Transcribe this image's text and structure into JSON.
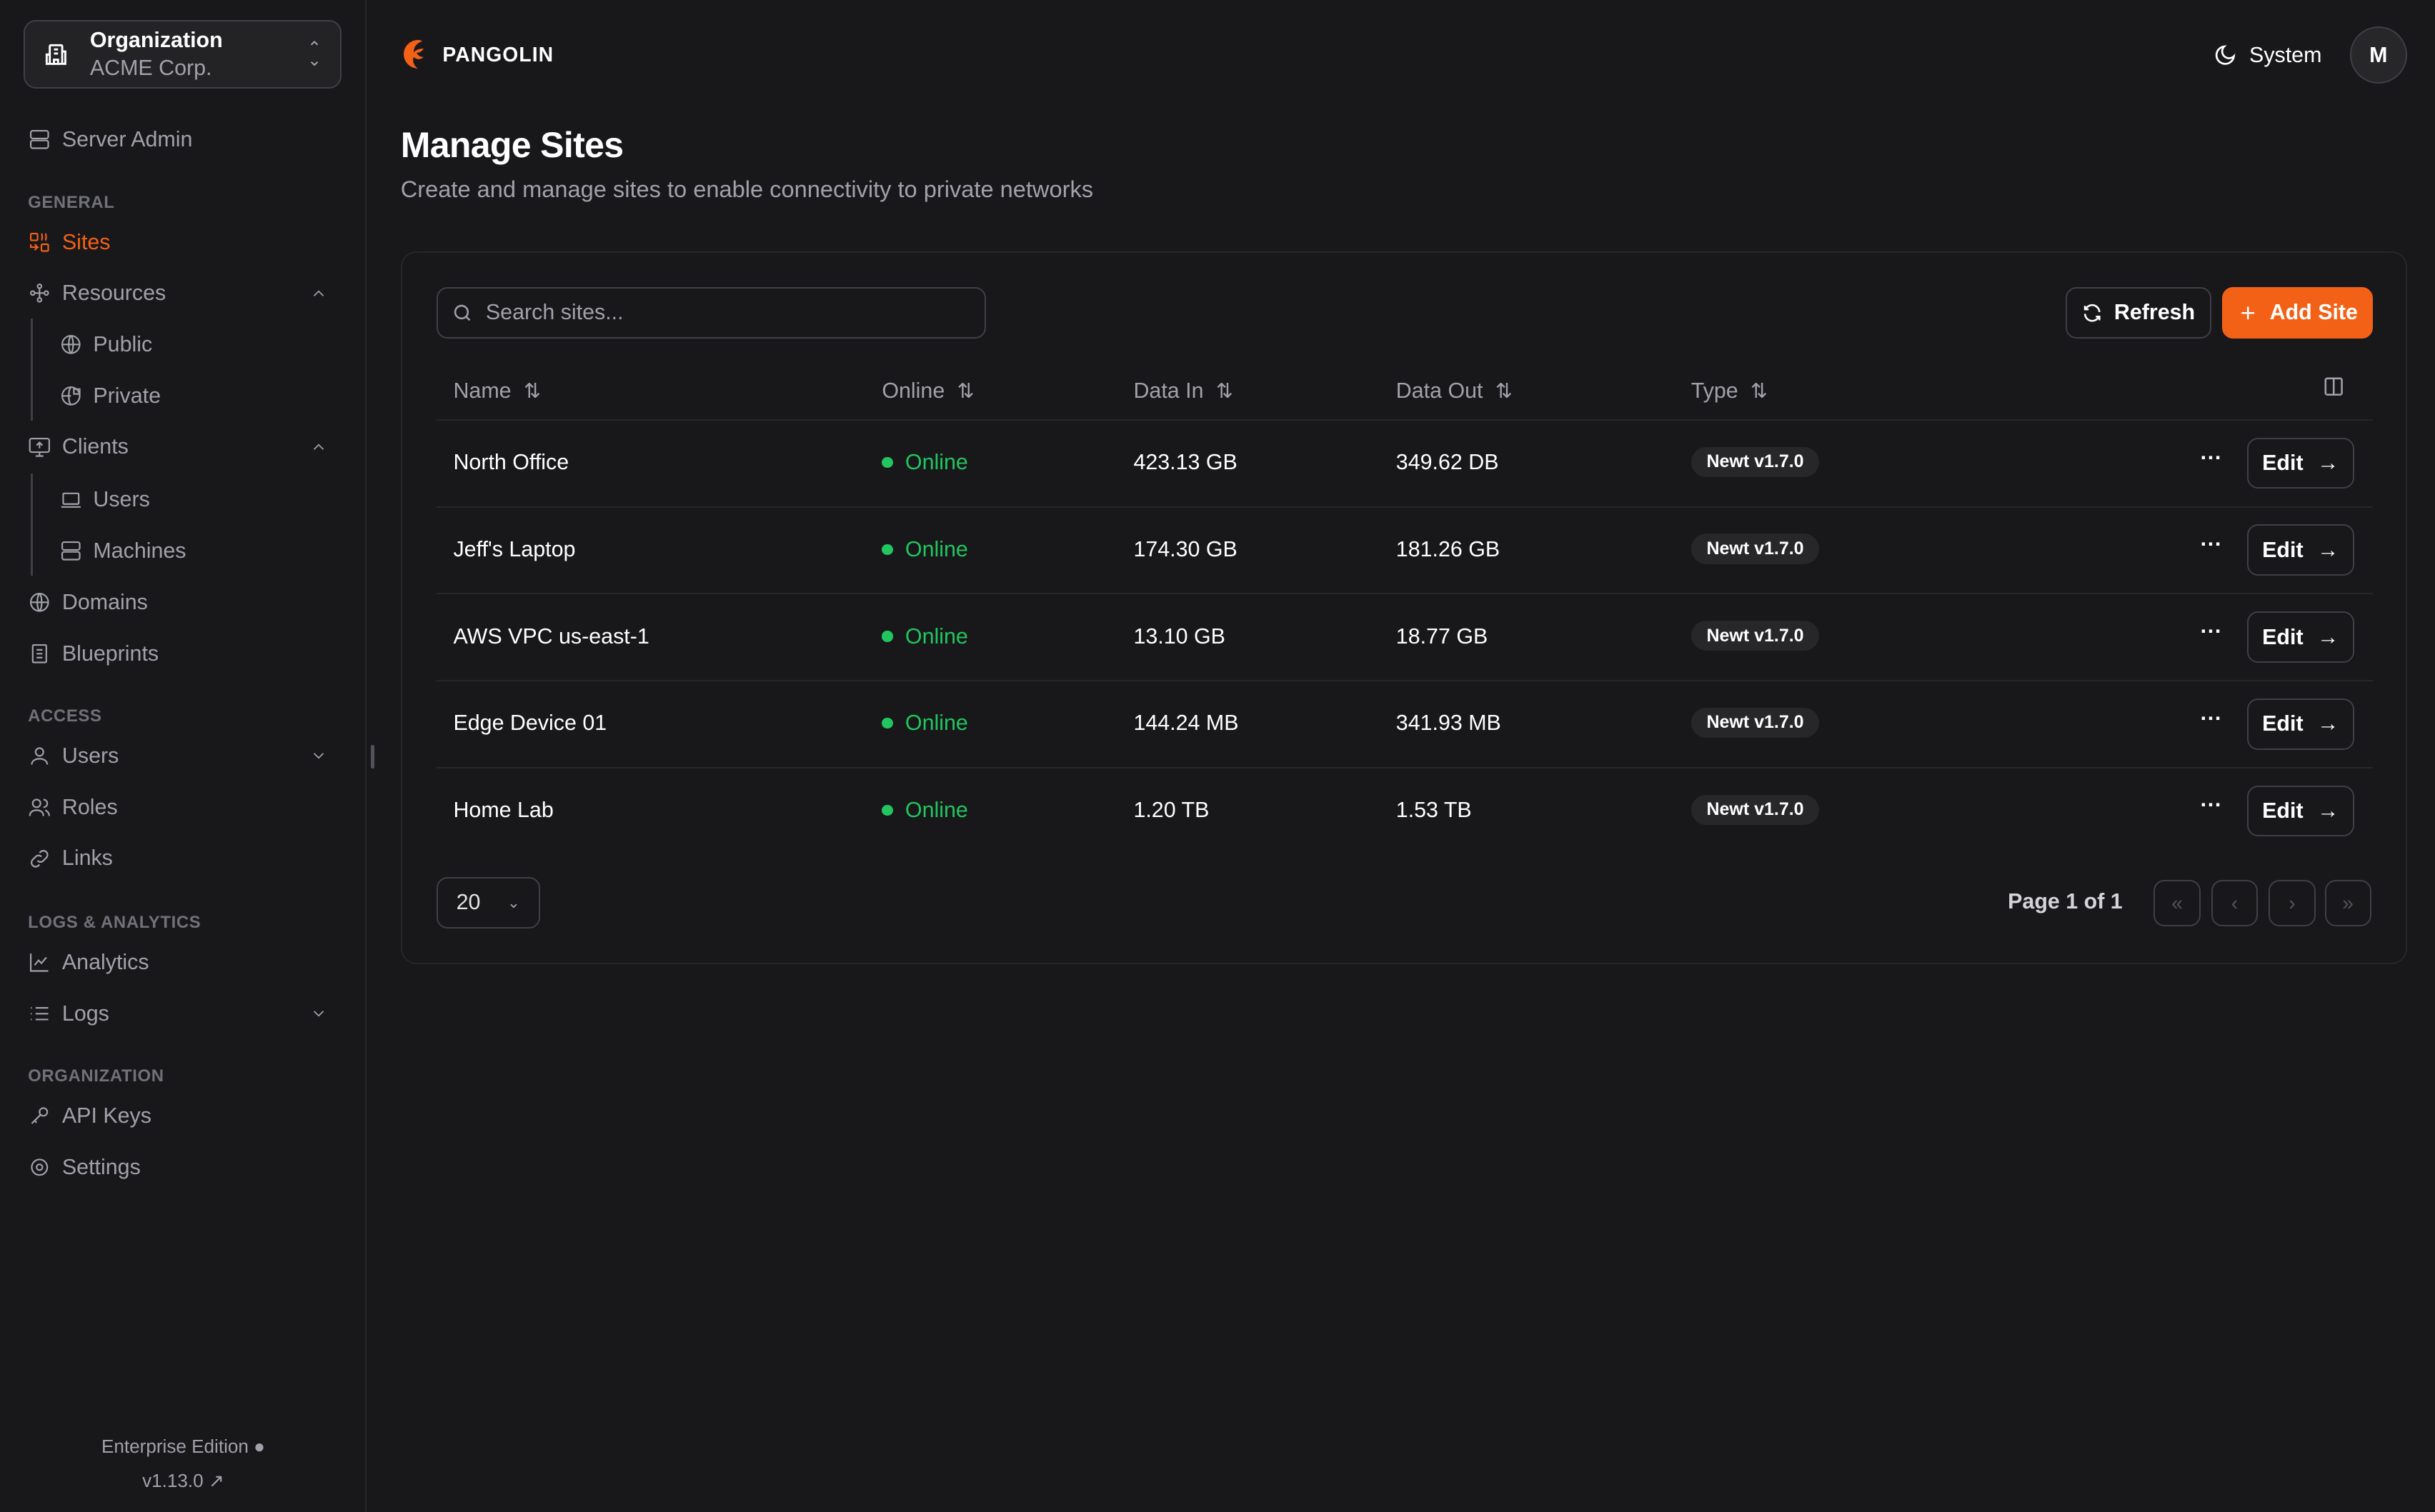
{
  "org": {
    "label": "Organization",
    "name": "ACME Corp."
  },
  "sidebar": {
    "server_admin": "Server Admin",
    "sections": {
      "general": "GENERAL",
      "access": "ACCESS",
      "logs": "LOGS & ANALYTICS",
      "organization": "ORGANIZATION"
    },
    "items": {
      "sites": "Sites",
      "resources": "Resources",
      "public": "Public",
      "private": "Private",
      "clients": "Clients",
      "users_client": "Users",
      "machines": "Machines",
      "domains": "Domains",
      "blueprints": "Blueprints",
      "users": "Users",
      "roles": "Roles",
      "links": "Links",
      "analytics": "Analytics",
      "logs": "Logs",
      "api_keys": "API Keys",
      "settings": "Settings"
    },
    "edition": "Enterprise Edition",
    "version": "v1.13.0"
  },
  "header": {
    "brand": "PANGOLIN",
    "theme": "System",
    "avatar": "M"
  },
  "page": {
    "title": "Manage Sites",
    "subtitle": "Create and manage sites to enable connectivity to private networks"
  },
  "toolbar": {
    "search_placeholder": "Search sites...",
    "refresh": "Refresh",
    "add": "Add Site"
  },
  "table": {
    "columns": [
      "Name",
      "Online",
      "Data In",
      "Data Out",
      "Type"
    ],
    "rows": [
      {
        "name": "North Office",
        "online": "Online",
        "data_in": "423.13 GB",
        "data_out": "349.62 DB",
        "type": "Newt v1.7.0"
      },
      {
        "name": "Jeff's Laptop",
        "online": "Online",
        "data_in": "174.30 GB",
        "data_out": "181.26 GB",
        "type": "Newt v1.7.0"
      },
      {
        "name": "AWS VPC us-east-1",
        "online": "Online",
        "data_in": "13.10 GB",
        "data_out": "18.77 GB",
        "type": "Newt v1.7.0"
      },
      {
        "name": "Edge Device 01",
        "online": "Online",
        "data_in": "144.24 MB",
        "data_out": "341.93 MB",
        "type": "Newt v1.7.0"
      },
      {
        "name": "Home Lab",
        "online": "Online",
        "data_in": "1.20 TB",
        "data_out": "1.53 TB",
        "type": "Newt v1.7.0"
      }
    ],
    "edit_label": "Edit"
  },
  "pagination": {
    "page_size": "20",
    "info": "Page 1 of 1"
  },
  "colors": {
    "accent": "#f36117",
    "online": "#22c55e",
    "background": "#18181b"
  }
}
